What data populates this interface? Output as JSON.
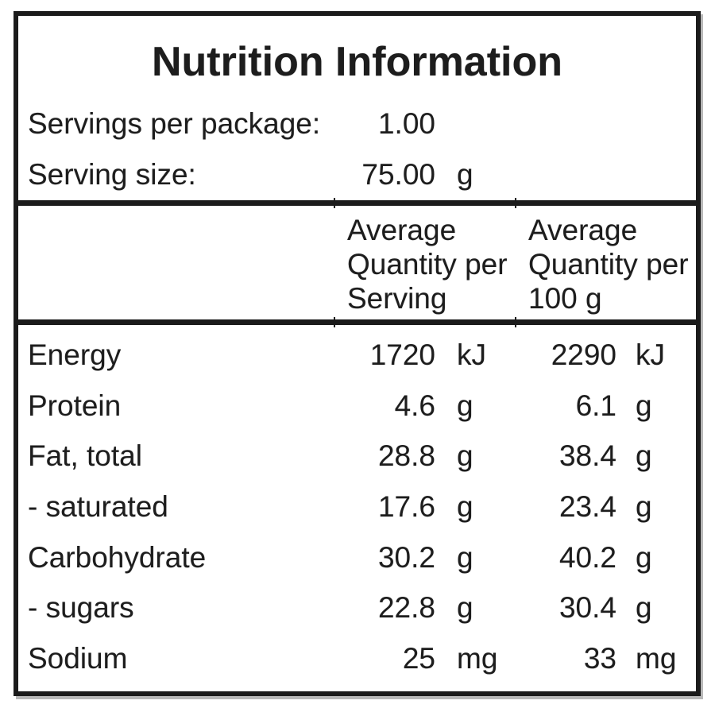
{
  "title": "Nutrition Information",
  "serving_info": {
    "rows": [
      {
        "label": "Servings per package:",
        "value": "1.00",
        "unit": ""
      },
      {
        "label": "Serving size:",
        "value": "75.00",
        "unit": "g"
      }
    ]
  },
  "header": {
    "per_serving_lines": [
      "Average",
      "Quantity per",
      "Serving"
    ],
    "per_100g_lines": [
      "Average",
      "Quantity per",
      "100 g"
    ]
  },
  "rows": [
    {
      "nutrient": "Energy",
      "serving_value": "1720",
      "serving_unit": "kJ",
      "per100_value": "2290",
      "per100_unit": "kJ"
    },
    {
      "nutrient": "Protein",
      "serving_value": "4.6",
      "serving_unit": "g",
      "per100_value": "6.1",
      "per100_unit": "g"
    },
    {
      "nutrient": "Fat, total",
      "serving_value": "28.8",
      "serving_unit": "g",
      "per100_value": "38.4",
      "per100_unit": "g"
    },
    {
      "nutrient": "- saturated",
      "serving_value": "17.6",
      "serving_unit": "g",
      "per100_value": "23.4",
      "per100_unit": "g"
    },
    {
      "nutrient": "Carbohydrate",
      "serving_value": "30.2",
      "serving_unit": "g",
      "per100_value": "40.2",
      "per100_unit": "g"
    },
    {
      "nutrient": "- sugars",
      "serving_value": "22.8",
      "serving_unit": "g",
      "per100_value": "30.4",
      "per100_unit": "g"
    },
    {
      "nutrient": "Sodium",
      "serving_value": "25",
      "serving_unit": "mg",
      "per100_value": "33",
      "per100_unit": "mg"
    }
  ],
  "colors": {
    "background": "#ffffff",
    "text": "#1d1d1d",
    "border": "#1b1b1b"
  }
}
